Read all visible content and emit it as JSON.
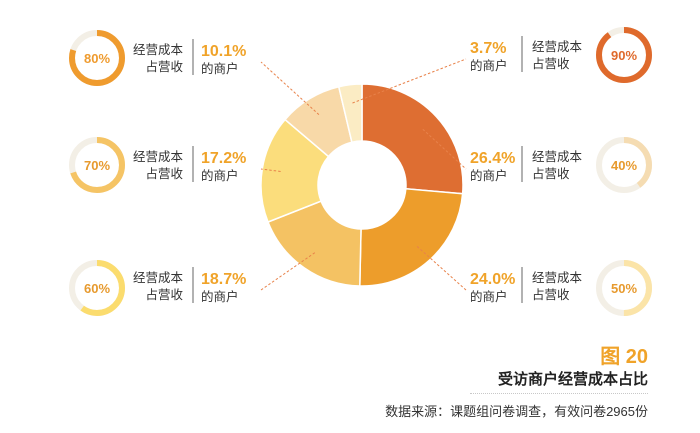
{
  "chart_data": {
    "type": "pie",
    "slices": [
      {
        "value": 26.4,
        "label": "26.4%",
        "sub": "的商户",
        "ring_label": "40%",
        "ring_pct": 40,
        "color": "#de6e32",
        "ring_color": "#f5dcb2"
      },
      {
        "value": 24.0,
        "label": "24.0%",
        "sub": "的商户",
        "ring_label": "50%",
        "ring_pct": 50,
        "color": "#ed9d2b",
        "ring_color": "#fbe4a8"
      },
      {
        "value": 18.7,
        "label": "18.7%",
        "sub": "的商户",
        "ring_label": "60%",
        "ring_pct": 60,
        "color": "#f4c263",
        "ring_color": "#fbdc6e"
      },
      {
        "value": 17.2,
        "label": "17.2%",
        "sub": "的商户",
        "ring_label": "70%",
        "ring_pct": 70,
        "color": "#fbdd7c",
        "ring_color": "#f5c465"
      },
      {
        "value": 10.1,
        "label": "10.1%",
        "sub": "的商户",
        "ring_label": "80%",
        "ring_pct": 80,
        "color": "#f8d9a8",
        "ring_color": "#ef9b2e"
      },
      {
        "value": 3.7,
        "label": "3.7%",
        "sub": "的商户",
        "ring_label": "90%",
        "ring_pct": 90,
        "color": "#fbecc4",
        "ring_color": "#df6a2c"
      }
    ],
    "category_label_line1": "经营成本",
    "category_label_line2": "占营收"
  },
  "figure": {
    "number": "图 20",
    "title": "受访商户经营成本占比",
    "source": "数据来源：课题组问卷调查，有效问卷2965份"
  },
  "colors": {
    "accent": "#f0a329",
    "text": "#333333",
    "leader_line": "#e8824a"
  }
}
